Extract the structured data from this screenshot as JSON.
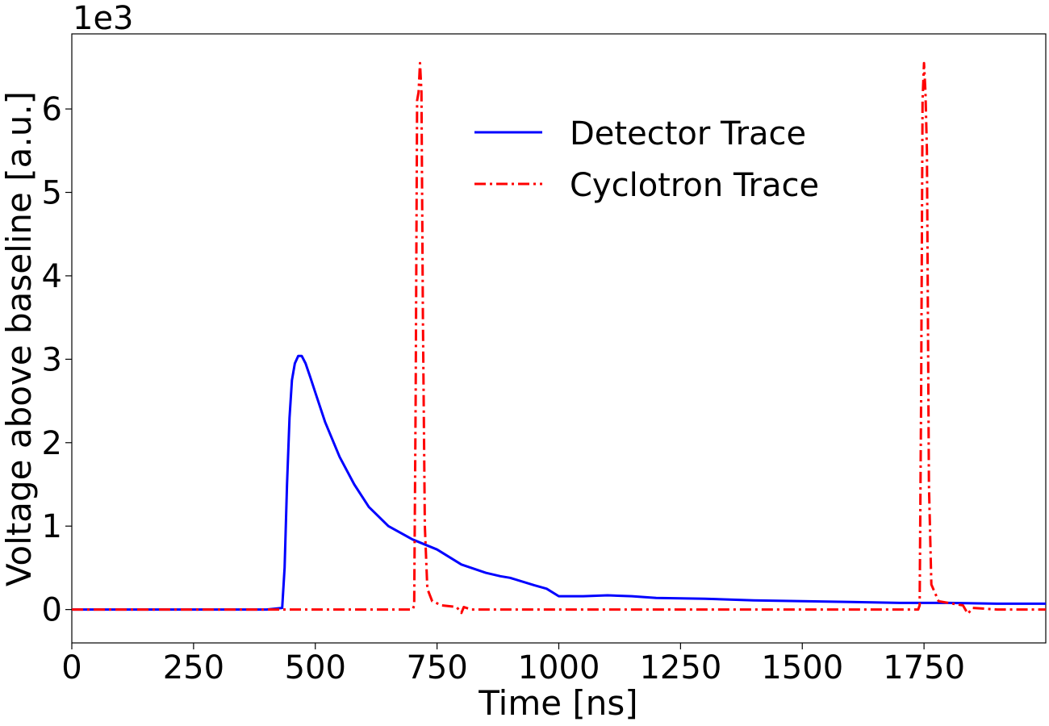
{
  "chart_data": {
    "type": "line",
    "xlabel": "Time [ns]",
    "ylabel": "Voltage above baseline [a.u.]",
    "y_offset_label": "1e3",
    "xlim": [
      0,
      2000
    ],
    "ylim": [
      -0.4,
      6.9
    ],
    "x_unit_note": "",
    "grid": false,
    "legend_placement": "upper-center",
    "x_ticks": [
      0,
      250,
      500,
      750,
      1000,
      1250,
      1500,
      1750
    ],
    "x_tick_labels": [
      "0",
      "250",
      "500",
      "750",
      "1000",
      "1250",
      "1500",
      "1750"
    ],
    "y_ticks": [
      0,
      1,
      2,
      3,
      4,
      5,
      6
    ],
    "y_tick_labels": [
      "0",
      "1",
      "2",
      "3",
      "4",
      "5",
      "6"
    ],
    "series": [
      {
        "name": "Detector Trace",
        "color": "#0000ff",
        "style": "solid",
        "x": [
          0,
          100,
          200,
          300,
          400,
          432,
          437,
          442,
          447,
          452,
          458,
          465,
          472,
          480,
          490,
          500,
          520,
          550,
          580,
          610,
          650,
          700,
          750,
          800,
          850,
          880,
          900,
          950,
          975,
          1000,
          1050,
          1100,
          1150,
          1200,
          1300,
          1400,
          1500,
          1600,
          1700,
          1800,
          1900,
          2000
        ],
        "y": [
          0,
          0,
          0,
          0,
          0,
          0.02,
          0.5,
          1.5,
          2.3,
          2.75,
          2.95,
          3.04,
          3.04,
          2.95,
          2.78,
          2.6,
          2.25,
          1.83,
          1.5,
          1.23,
          1.0,
          0.84,
          0.72,
          0.54,
          0.44,
          0.4,
          0.38,
          0.29,
          0.25,
          0.16,
          0.16,
          0.17,
          0.16,
          0.14,
          0.13,
          0.11,
          0.1,
          0.09,
          0.08,
          0.08,
          0.07,
          0.07
        ]
      },
      {
        "name": "Cyclotron Trace",
        "color": "#ff0000",
        "style": "dashdot",
        "x": [
          0,
          400,
          700,
          703,
          706,
          709,
          712,
          715,
          718,
          721,
          725,
          730,
          740,
          760,
          790,
          800,
          805,
          820,
          1000,
          1500,
          1738,
          1741,
          1744,
          1747,
          1750,
          1753,
          1756,
          1760,
          1765,
          1780,
          1830,
          1840,
          1850,
          1900,
          2000
        ],
        "y": [
          0,
          0,
          0,
          0.05,
          2.5,
          6.1,
          6.2,
          6.55,
          6.2,
          3.5,
          1.0,
          0.25,
          0.1,
          0.05,
          0.03,
          -0.04,
          0.03,
          0.0,
          0.0,
          0.0,
          0.0,
          0.05,
          2.5,
          6.1,
          6.55,
          6.2,
          5.5,
          1.5,
          0.3,
          0.1,
          0.05,
          -0.05,
          0.02,
          0.0,
          0.0
        ]
      }
    ]
  }
}
